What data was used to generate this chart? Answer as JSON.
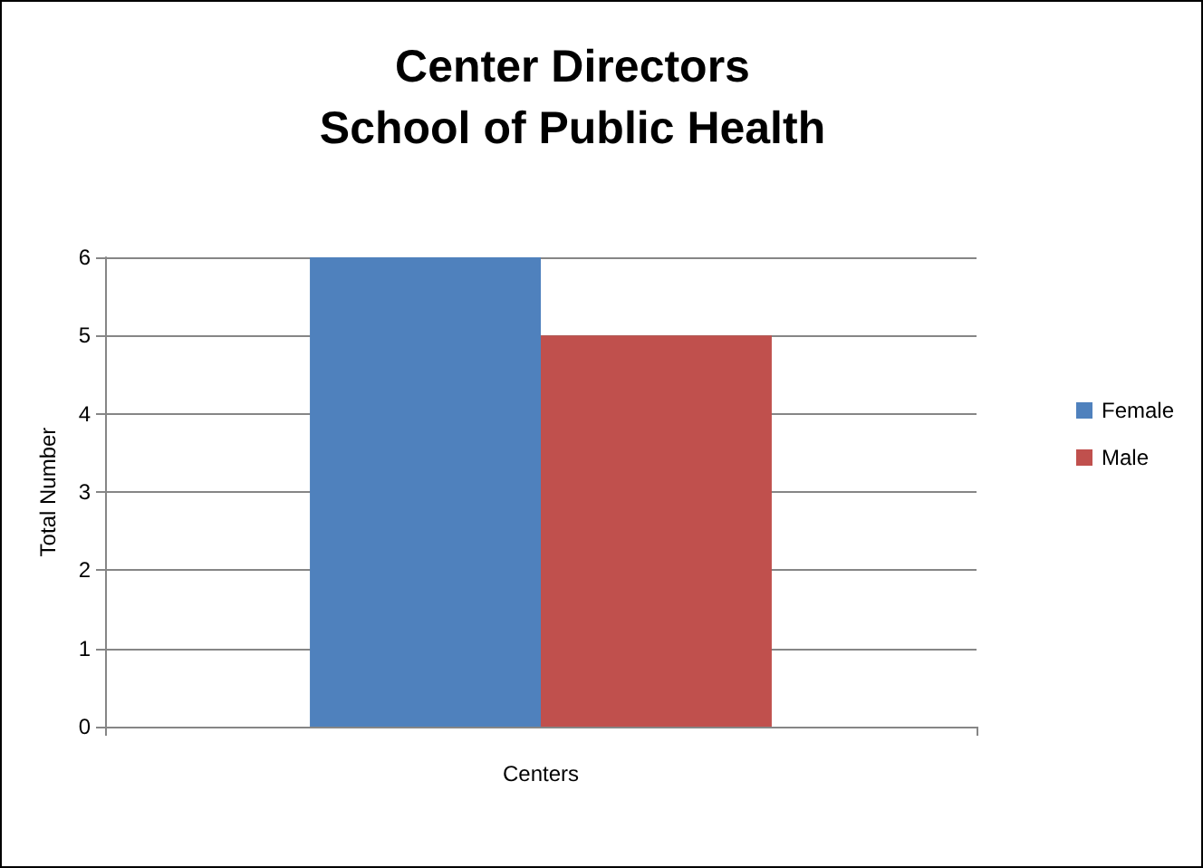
{
  "chart_data": {
    "type": "bar",
    "title": "Center Directors\nSchool of Public Health",
    "ylabel": "Total Number",
    "xlabel": "Centers",
    "categories": [
      null
    ],
    "series": [
      {
        "name": "Female",
        "color": "#4f81bd",
        "values": [
          6
        ]
      },
      {
        "name": "Male",
        "color": "#c0504d",
        "values": [
          5
        ]
      }
    ],
    "ylim": [
      0,
      6
    ],
    "yticks": [
      0,
      1,
      2,
      3,
      4,
      5,
      6
    ],
    "grid": "y",
    "legend": "right"
  }
}
